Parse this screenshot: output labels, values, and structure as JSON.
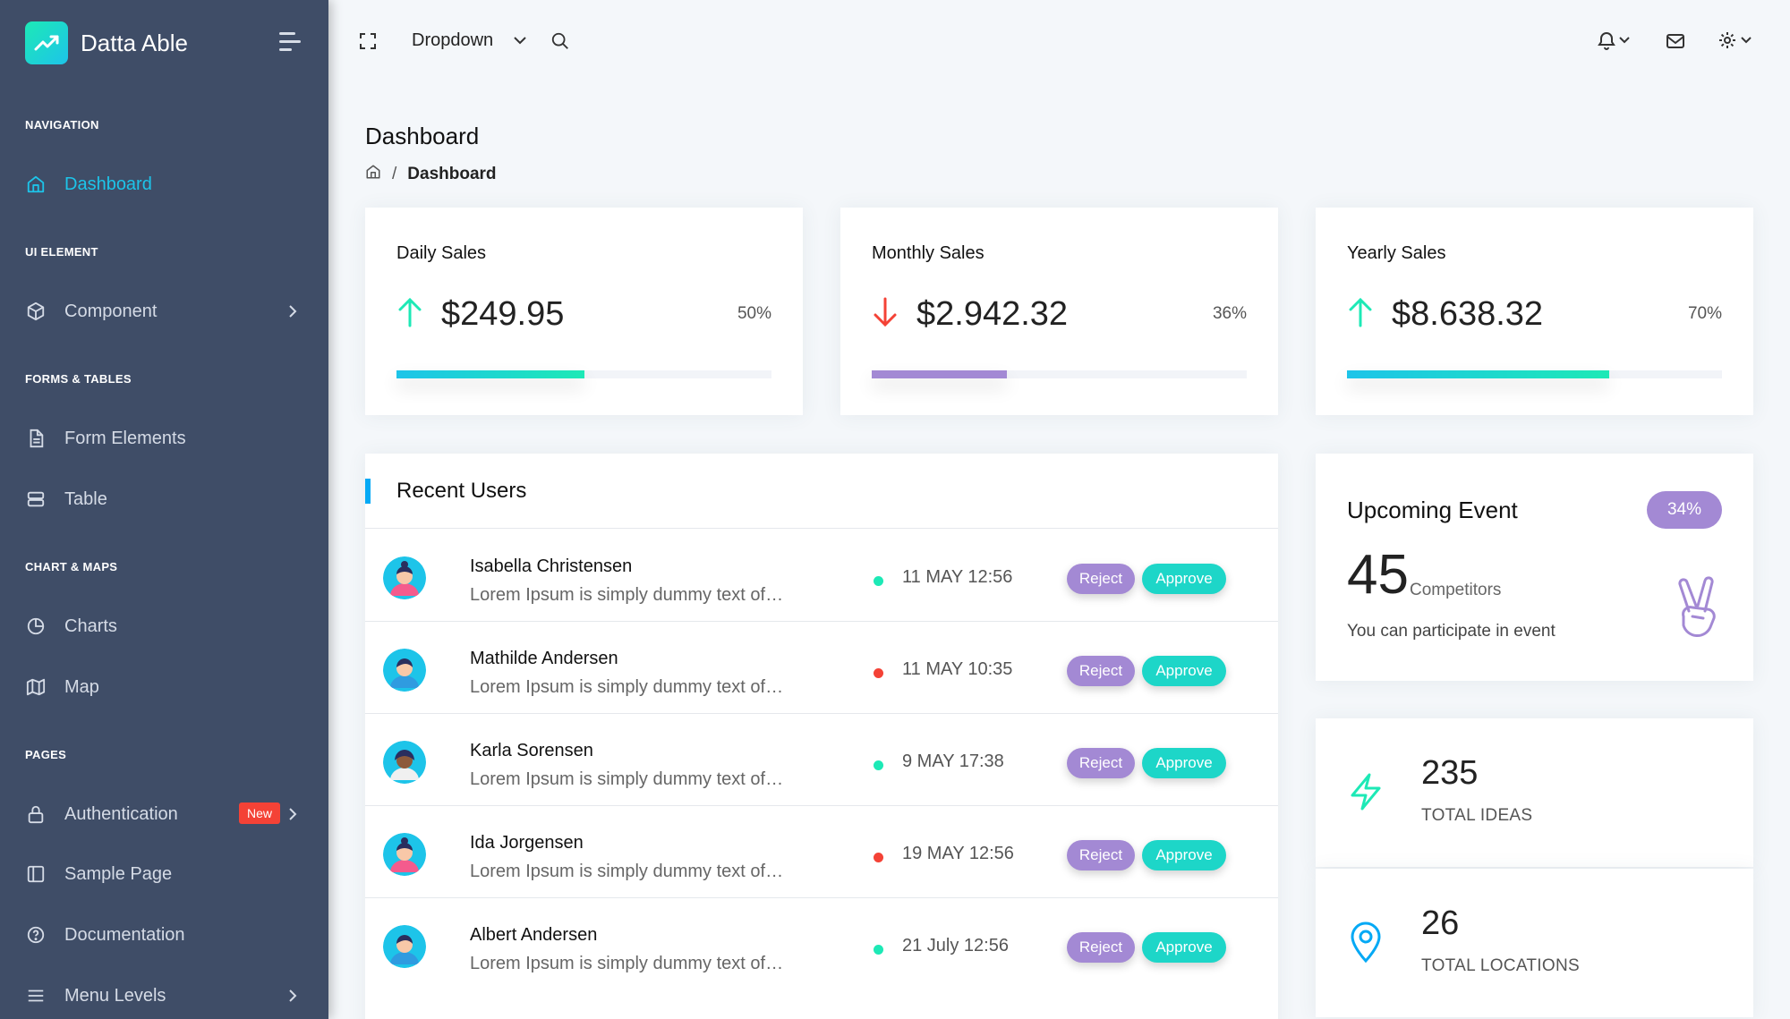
{
  "brand": {
    "name": "Datta Able"
  },
  "sidebar": {
    "captions": {
      "navigation": "NAVIGATION",
      "ui_element": "UI ELEMENT",
      "forms_tables": "FORMS & TABLES",
      "chart_maps": "CHART & MAPS",
      "pages": "PAGES"
    },
    "items": {
      "dashboard": "Dashboard",
      "component": "Component",
      "form_elements": "Form Elements",
      "table": "Table",
      "charts": "Charts",
      "map": "Map",
      "authentication": "Authentication",
      "authentication_badge": "New",
      "sample_page": "Sample Page",
      "documentation": "Documentation",
      "menu_levels": "Menu Levels"
    }
  },
  "header": {
    "dropdown_label": "Dropdown"
  },
  "page": {
    "title": "Dashboard",
    "breadcrumb_current": "Dashboard"
  },
  "sales": [
    {
      "title": "Daily Sales",
      "value": "$249.95",
      "percent_label": "50%",
      "progress": 0.5,
      "trend": "up",
      "color": "#1de9b6"
    },
    {
      "title": "Monthly Sales",
      "value": "$2.942.32",
      "percent_label": "36%",
      "progress": 0.36,
      "trend": "down",
      "color": "#a389d4"
    },
    {
      "title": "Yearly Sales",
      "value": "$8.638.32",
      "percent_label": "70%",
      "progress": 0.7,
      "trend": "up",
      "color": "#1de9b6"
    }
  ],
  "recent_users": {
    "title": "Recent Users",
    "reject_label": "Reject",
    "approve_label": "Approve",
    "rows": [
      {
        "name": "Isabella Christensen",
        "desc": "Lorem Ipsum is simply dummy text of…",
        "date": "11 MAY 12:56",
        "status": "green"
      },
      {
        "name": "Mathilde Andersen",
        "desc": "Lorem Ipsum is simply dummy text of…",
        "date": "11 MAY 10:35",
        "status": "red"
      },
      {
        "name": "Karla Sorensen",
        "desc": "Lorem Ipsum is simply dummy text of…",
        "date": "9 MAY 17:38",
        "status": "green"
      },
      {
        "name": "Ida Jorgensen",
        "desc": "Lorem Ipsum is simply dummy text of…",
        "date": "19 MAY 12:56",
        "status": "red"
      },
      {
        "name": "Albert Andersen",
        "desc": "Lorem Ipsum is simply dummy text of…",
        "date": "21 July 12:56",
        "status": "green"
      }
    ]
  },
  "upcoming_event": {
    "title": "Upcoming Event",
    "badge": "34%",
    "count": "45",
    "count_label": "Competitors",
    "text": "You can participate in event"
  },
  "stats": [
    {
      "value": "235",
      "label": "TOTAL IDEAS",
      "icon": "zap-icon"
    },
    {
      "value": "26",
      "label": "TOTAL LOCATIONS",
      "icon": "map-pin-icon"
    }
  ],
  "colors": {
    "sidebar_bg": "#3f4d67",
    "accent": "#1dc4e9",
    "green": "#1de9b6",
    "red": "#f44236",
    "purple": "#a389d4"
  }
}
